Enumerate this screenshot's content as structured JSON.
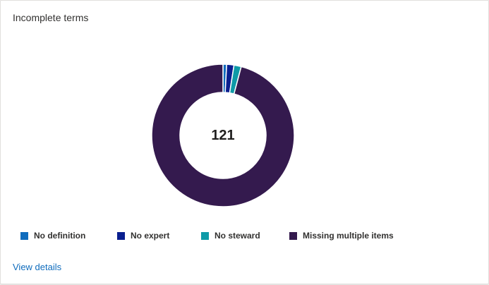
{
  "card": {
    "title": "Incomplete terms",
    "total": "121",
    "view_details_label": "View details"
  },
  "chart_data": {
    "type": "pie",
    "style": "donut",
    "center_label": "121",
    "legend_position": "bottom-left",
    "categories": [
      "No definition",
      "No expert",
      "No steward",
      "Missing multiple items"
    ],
    "values": [
      1,
      2,
      2,
      116
    ],
    "colors": [
      "#0f6cbd",
      "#0a1f8f",
      "#0e9aa7",
      "#341a4e"
    ]
  },
  "legend": [
    {
      "label": "No definition",
      "color": "#0f6cbd"
    },
    {
      "label": "No expert",
      "color": "#0a1f8f"
    },
    {
      "label": "No steward",
      "color": "#0e9aa7"
    },
    {
      "label": "Missing multiple items",
      "color": "#341a4e"
    }
  ]
}
